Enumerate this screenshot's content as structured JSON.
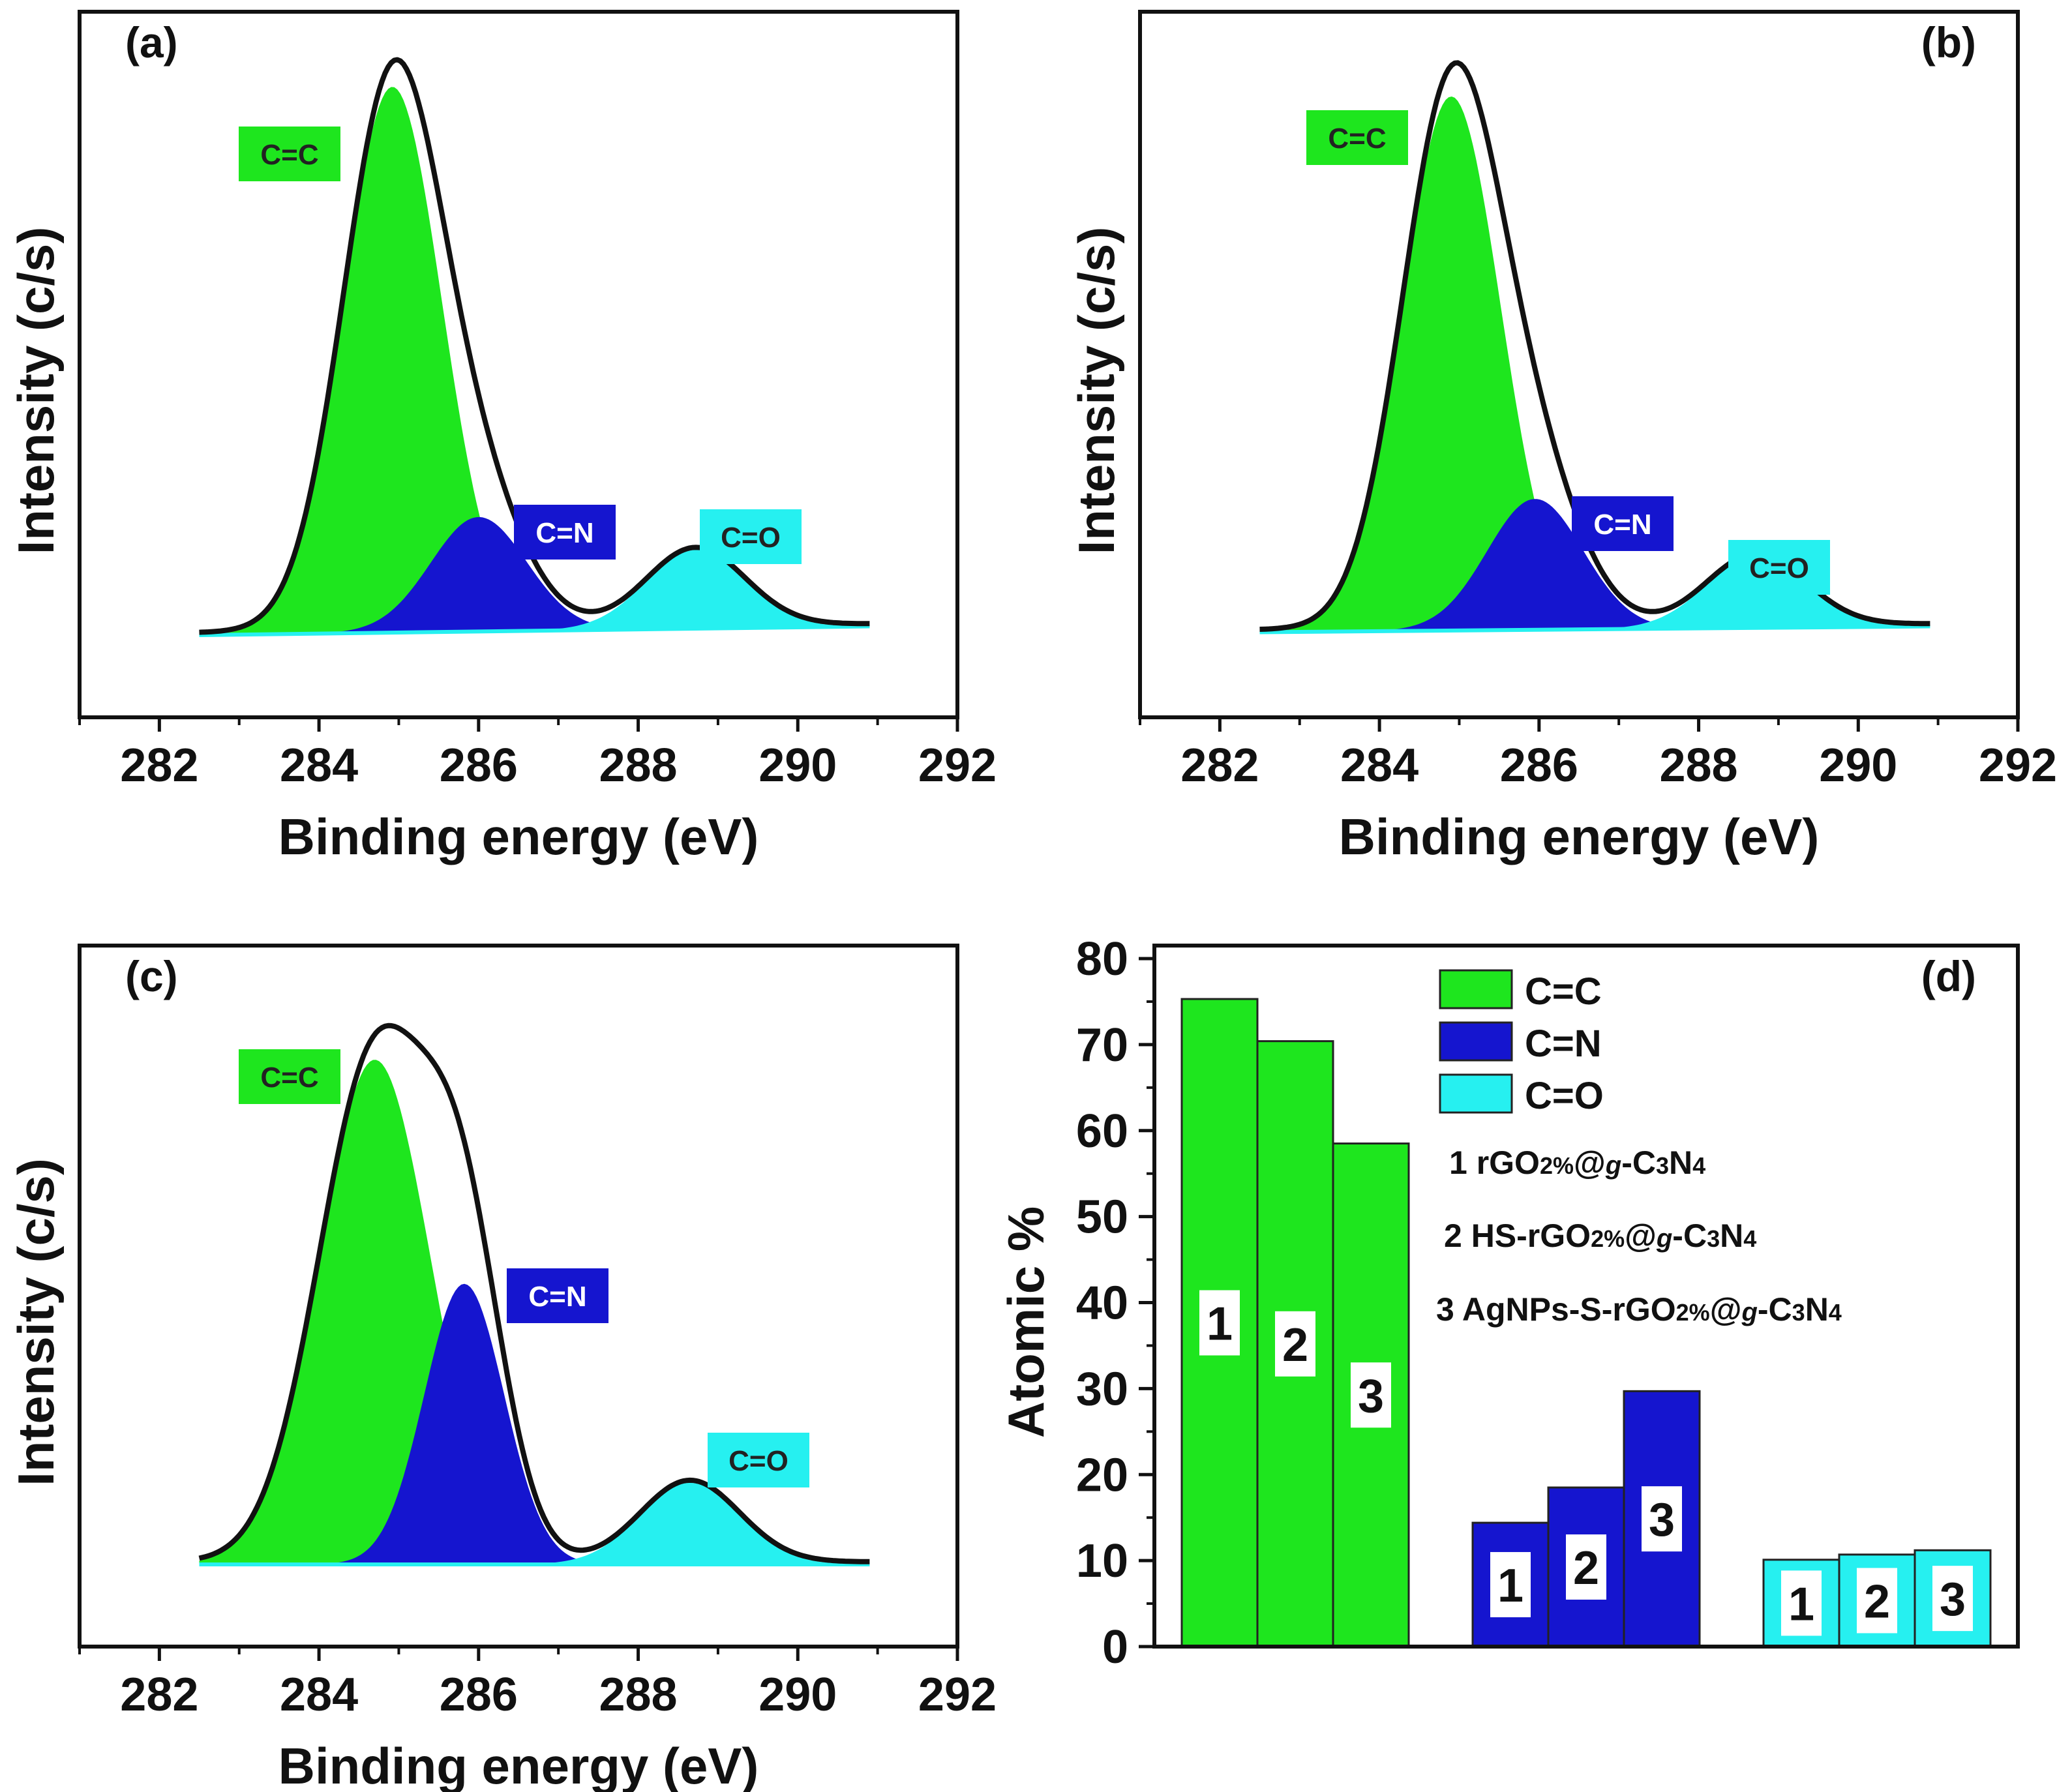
{
  "colors": {
    "cc": "#1ee61e",
    "cn": "#1515cf",
    "co": "#26f0f0",
    "envelope": "#111111",
    "axis": "#111111"
  },
  "spectra": {
    "xlabel": "Binding energy (eV)",
    "ylabel": "Intensity (c/s)",
    "xlim": [
      281,
      292
    ],
    "xticks": [
      282,
      284,
      286,
      288,
      290,
      292
    ],
    "range": [
      282.5,
      290.9
    ],
    "peak_labels": [
      "C=C",
      "C=N",
      "C=O"
    ]
  },
  "chart_data": [
    {
      "type": "area",
      "panel": "(a)",
      "title": "",
      "xlabel": "Binding energy (eV)",
      "ylabel": "Intensity (c/s)",
      "xlim": [
        281,
        292
      ],
      "ylim": [
        0,
        1
      ],
      "series": [
        {
          "name": "C=C",
          "center": 284.92,
          "height": 0.93,
          "sigma": 0.62
        },
        {
          "name": "C=N",
          "center": 286.0,
          "height": 0.195,
          "sigma": 0.6
        },
        {
          "name": "C=O",
          "center": 288.72,
          "height": 0.134,
          "sigma": 0.62
        }
      ],
      "baseline": [
        0.04,
        0.055
      ],
      "envelope": "sum"
    },
    {
      "type": "area",
      "panel": "(b)",
      "title": "",
      "xlabel": "Binding energy (eV)",
      "ylabel": "Intensity (c/s)",
      "xlim": [
        281,
        292
      ],
      "ylim": [
        0,
        1
      ],
      "series": [
        {
          "name": "C=C",
          "center": 284.9,
          "height": 0.91,
          "sigma": 0.62
        },
        {
          "name": "C=N",
          "center": 285.95,
          "height": 0.223,
          "sigma": 0.6
        },
        {
          "name": "C=O",
          "center": 288.72,
          "height": 0.122,
          "sigma": 0.62
        }
      ],
      "baseline": [
        0.045,
        0.055
      ],
      "envelope": "sum"
    },
    {
      "type": "area",
      "panel": "(c)",
      "title": "",
      "xlabel": "Binding energy (eV)",
      "ylabel": "Intensity (c/s)",
      "xlim": [
        281,
        292
      ],
      "ylim": [
        0,
        1
      ],
      "series": [
        {
          "name": "C=C",
          "center": 284.7,
          "height": 0.86,
          "sigma": 0.7
        },
        {
          "name": "C=N",
          "center": 285.82,
          "height": 0.478,
          "sigma": 0.5
        },
        {
          "name": "C=O",
          "center": 288.65,
          "height": 0.139,
          "sigma": 0.62
        }
      ],
      "baseline": [
        0.04,
        0.04
      ],
      "envelope": "sum"
    },
    {
      "type": "bar",
      "panel": "(d)",
      "title": "",
      "xlabel": "",
      "ylabel": "Atomic %",
      "ylim": [
        0,
        80
      ],
      "yticks": [
        0,
        10,
        20,
        30,
        40,
        50,
        60,
        70,
        80
      ],
      "categories": [
        "C=C",
        "C=N",
        "C=O"
      ],
      "series": [
        {
          "name": "1 rGO2%@g-C3N4",
          "values": [
            75.3,
            14.4,
            10.1
          ]
        },
        {
          "name": "2 HS-rGO2%@g-C3N4",
          "values": [
            70.4,
            18.5,
            10.7
          ]
        },
        {
          "name": "3 AgNPs-S-rGO2%@g-C3N4",
          "values": [
            58.5,
            29.7,
            11.2
          ]
        }
      ],
      "bar_labels": [
        "1",
        "2",
        "3"
      ],
      "legend": {
        "position": "top-right",
        "entries": [
          "C=C",
          "C=N",
          "C=O"
        ]
      },
      "samples": [
        {
          "num": "1",
          "prefix": "rGO",
          "pct": "2%",
          "at": "@",
          "g": "g",
          "rest1": "-C",
          "sub3": "3",
          "rest2": "N",
          "sub4": "4"
        },
        {
          "num": "2",
          "prefix": "HS-rGO",
          "pct": "2%",
          "at": "@",
          "g": "g",
          "rest1": "-C",
          "sub3": "3",
          "rest2": "N",
          "sub4": "4"
        },
        {
          "num": "3",
          "prefix": "AgNPs-S-rGO",
          "pct": "2%",
          "at": "@",
          "g": "g",
          "rest1": "-C",
          "sub3": "3",
          "rest2": "N",
          "sub4": "4"
        }
      ]
    }
  ]
}
